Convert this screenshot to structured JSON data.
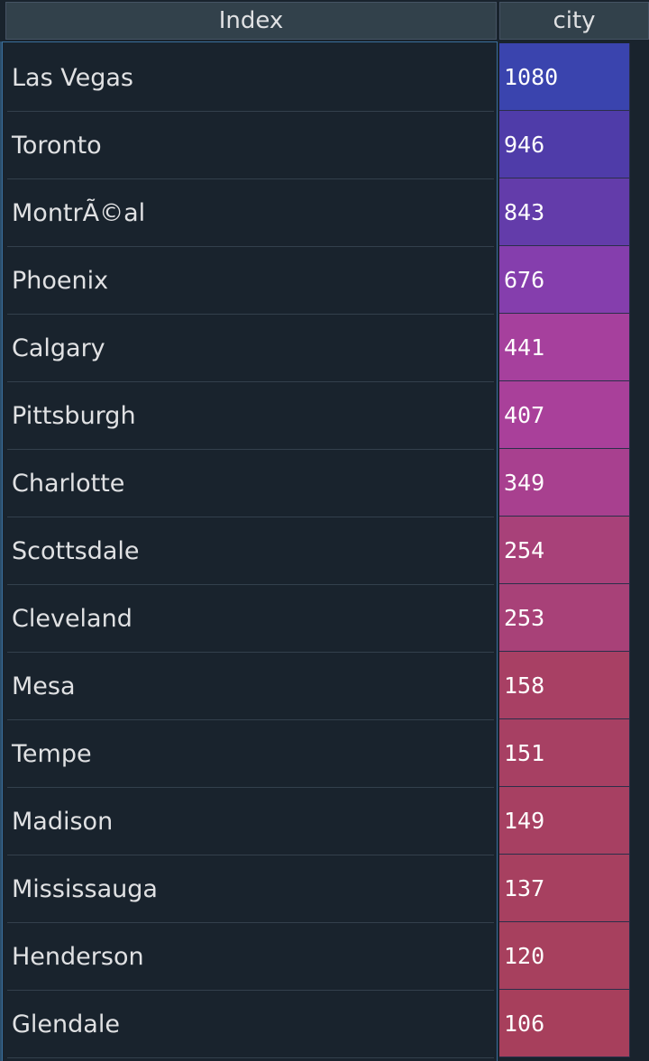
{
  "header": {
    "index_label": "Index",
    "column_label": "city"
  },
  "rows": [
    {
      "index": "Las Vegas",
      "value": "1080",
      "color": "#3a44ae"
    },
    {
      "index": "Toronto",
      "value": "946",
      "color": "#4f3ca9"
    },
    {
      "index": "MontrÃ©al",
      "value": "843",
      "color": "#633caa"
    },
    {
      "index": "Phoenix",
      "value": "676",
      "color": "#853ead"
    },
    {
      "index": "Calgary",
      "value": "441",
      "color": "#a6409d"
    },
    {
      "index": "Pittsburgh",
      "value": "407",
      "color": "#a9409a"
    },
    {
      "index": "Charlotte",
      "value": "349",
      "color": "#a8408f"
    },
    {
      "index": "Scottsdale",
      "value": "254",
      "color": "#a84179"
    },
    {
      "index": "Cleveland",
      "value": "253",
      "color": "#a84178"
    },
    {
      "index": "Mesa",
      "value": "158",
      "color": "#a84064"
    },
    {
      "index": "Tempe",
      "value": "151",
      "color": "#a74063"
    },
    {
      "index": "Madison",
      "value": "149",
      "color": "#a74062"
    },
    {
      "index": "Mississauga",
      "value": "137",
      "color": "#a74060"
    },
    {
      "index": "Henderson",
      "value": "120",
      "color": "#a7405e"
    },
    {
      "index": "Glendale",
      "value": "106",
      "color": "#a73f5c"
    }
  ]
}
